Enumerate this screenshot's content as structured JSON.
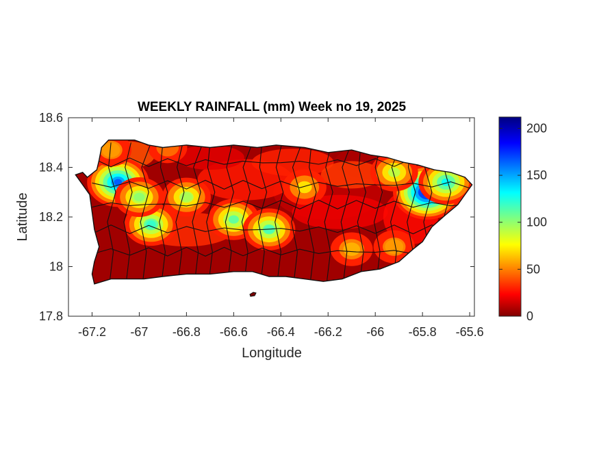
{
  "map": {
    "title": "WEEKLY RAINFALL (mm) Week no 19, 2025",
    "xlabel": "Longitude",
    "ylabel": "Latitude",
    "xlim": [
      -67.3,
      -65.58
    ],
    "ylim": [
      17.8,
      18.6
    ],
    "xticks": [
      {
        "value": -67.2,
        "label": "-67.2"
      },
      {
        "value": -67.0,
        "label": "-67"
      },
      {
        "value": -66.8,
        "label": "-66.8"
      },
      {
        "value": -66.6,
        "label": "-66.6"
      },
      {
        "value": -66.4,
        "label": "-66.4"
      },
      {
        "value": -66.2,
        "label": "-66.2"
      },
      {
        "value": -66.0,
        "label": "-66"
      },
      {
        "value": -65.8,
        "label": "-65.8"
      },
      {
        "value": -65.6,
        "label": "-65.6"
      }
    ],
    "yticks": [
      {
        "value": 17.8,
        "label": "17.8"
      },
      {
        "value": 18.0,
        "label": "18"
      },
      {
        "value": 18.2,
        "label": "18.2"
      },
      {
        "value": 18.4,
        "label": "18.4"
      },
      {
        "value": 18.6,
        "label": "18.6"
      }
    ],
    "colorbar": {
      "colormap": "jet",
      "range": [
        0,
        212
      ],
      "ticks": [
        {
          "value": 0,
          "label": "0"
        },
        {
          "value": 50,
          "label": "50"
        },
        {
          "value": 100,
          "label": "100"
        },
        {
          "value": 150,
          "label": "150"
        },
        {
          "value": 200,
          "label": "200"
        }
      ]
    },
    "region": "Puerto Rico",
    "rainfall_hotspots_mm": [
      {
        "lon": -65.78,
        "lat": 18.3,
        "value": 200
      },
      {
        "lon": -67.09,
        "lat": 18.34,
        "value": 165
      },
      {
        "lon": -66.95,
        "lat": 18.17,
        "value": 120
      },
      {
        "lon": -67.0,
        "lat": 18.28,
        "value": 100
      },
      {
        "lon": -66.8,
        "lat": 18.28,
        "value": 95
      },
      {
        "lon": -66.6,
        "lat": 18.19,
        "value": 110
      },
      {
        "lon": -66.45,
        "lat": 18.15,
        "value": 115
      },
      {
        "lon": -66.3,
        "lat": 18.32,
        "value": 70
      },
      {
        "lon": -65.92,
        "lat": 18.38,
        "value": 90
      },
      {
        "lon": -65.7,
        "lat": 18.34,
        "value": 130
      },
      {
        "lon": -66.1,
        "lat": 18.07,
        "value": 60
      },
      {
        "lon": -65.92,
        "lat": 18.08,
        "value": 55
      },
      {
        "lon": -66.88,
        "lat": 18.48,
        "value": 45
      },
      {
        "lon": -67.12,
        "lat": 18.47,
        "value": 55
      }
    ]
  }
}
